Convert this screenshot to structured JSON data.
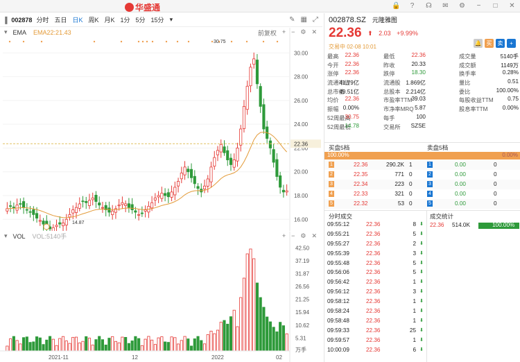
{
  "app": {
    "logo_text": "华盛通"
  },
  "chart_toolbar": {
    "code": "002878",
    "timeframes": [
      "分时",
      "五日",
      "日K",
      "周K",
      "月K",
      "1分",
      "5分",
      "15分"
    ],
    "active": "日K"
  },
  "price_panel": {
    "indicator": "EMA",
    "indicator_value": "EMA22:21.43",
    "adjust": "前复权",
    "y_ticks": [
      "30.00",
      "28.00",
      "26.00",
      "24.00",
      "22.00",
      "20.00",
      "18.00",
      "16.00"
    ],
    "current_tag": "22.36",
    "high_label": "30.75",
    "low_label": "14.87"
  },
  "vol_panel": {
    "indicator": "VOL",
    "indicator_value": "VOL:5140手",
    "y_ticks": [
      "42.50",
      "37.19",
      "31.87",
      "26.56",
      "21.25",
      "15.94",
      "10.62",
      "5.31"
    ],
    "unit": "万手",
    "x_ticks": [
      "2021-11",
      "12",
      "2022",
      "02"
    ]
  },
  "stock": {
    "code": "002878.SZ",
    "name": "元隆雅图",
    "price": "22.36",
    "arrow": "⬆",
    "change": "2.03",
    "change_pct": "+9.99%",
    "status": "交易中 02-08 10:01"
  },
  "quote": [
    [
      "最高",
      "22.36",
      "最低",
      "22.36",
      "成交量",
      "5140手"
    ],
    [
      "今开",
      "22.36",
      "昨收",
      "20.33",
      "成交额",
      "1149万"
    ],
    [
      "涨停",
      "22.36",
      "跌停",
      "18.30",
      "换手率",
      "0.28%"
    ],
    [
      "流通市值",
      "41.79亿",
      "流通股",
      "1.869亿",
      "量比",
      "0.51"
    ],
    [
      "总市值",
      "49.51亿",
      "总股本",
      "2.214亿",
      "委比",
      "100.00%"
    ],
    [
      "均价",
      "22.36",
      "市盈率TTM",
      "39.03",
      "每股收益TTM",
      "0.75"
    ],
    [
      "振幅",
      "0.00%",
      "市净率MRQ",
      "5.87",
      "股息率TTM",
      "0.00%"
    ],
    [
      "52周最高",
      "30.75",
      "每手",
      "100",
      "",
      ""
    ],
    [
      "52周最低",
      "14.78",
      "交易所",
      "SZSE",
      "",
      ""
    ]
  ],
  "orderbook": {
    "buy_title": "买盘5档",
    "sell_title": "卖盘5档",
    "buy_ratio": "100.00%",
    "sell_ratio": "0.00%",
    "buy": [
      [
        "1",
        "22.36",
        "290.2K",
        "1"
      ],
      [
        "2",
        "22.35",
        "771",
        "0"
      ],
      [
        "3",
        "22.34",
        "223",
        "0"
      ],
      [
        "4",
        "22.33",
        "321",
        "0"
      ],
      [
        "5",
        "22.32",
        "53",
        "0"
      ]
    ],
    "sell": [
      [
        "1",
        "0.00",
        "0"
      ],
      [
        "2",
        "0.00",
        "0"
      ],
      [
        "3",
        "0.00",
        "0"
      ],
      [
        "4",
        "0.00",
        "0"
      ],
      [
        "5",
        "0.00",
        "0"
      ]
    ]
  },
  "timesales": {
    "title": "分时成交",
    "rows": [
      [
        "09:55:12",
        "22.36",
        "8"
      ],
      [
        "09:55:21",
        "22.36",
        "5"
      ],
      [
        "09:55:27",
        "22.36",
        "2"
      ],
      [
        "09:55:39",
        "22.36",
        "3"
      ],
      [
        "09:55:48",
        "22.36",
        "5"
      ],
      [
        "09:56:06",
        "22.36",
        "5"
      ],
      [
        "09:56:42",
        "22.36",
        "1"
      ],
      [
        "09:56:12",
        "22.36",
        "3"
      ],
      [
        "09:58:12",
        "22.36",
        "1"
      ],
      [
        "09:58:24",
        "22.36",
        "1"
      ],
      [
        "09:58:48",
        "22.36",
        "1"
      ],
      [
        "09:59:33",
        "22.36",
        "25"
      ],
      [
        "09:59:57",
        "22.36",
        "1"
      ],
      [
        "10:00:09",
        "22.36",
        "6"
      ]
    ]
  },
  "stats": {
    "title": "成交统计",
    "price": "22.36",
    "volume": "514.0K",
    "pct": "100.00%"
  },
  "colors": {
    "up": "#e53935",
    "down": "#2e9a3a",
    "ema": "#e39a37",
    "accent": "#1976d2"
  }
}
